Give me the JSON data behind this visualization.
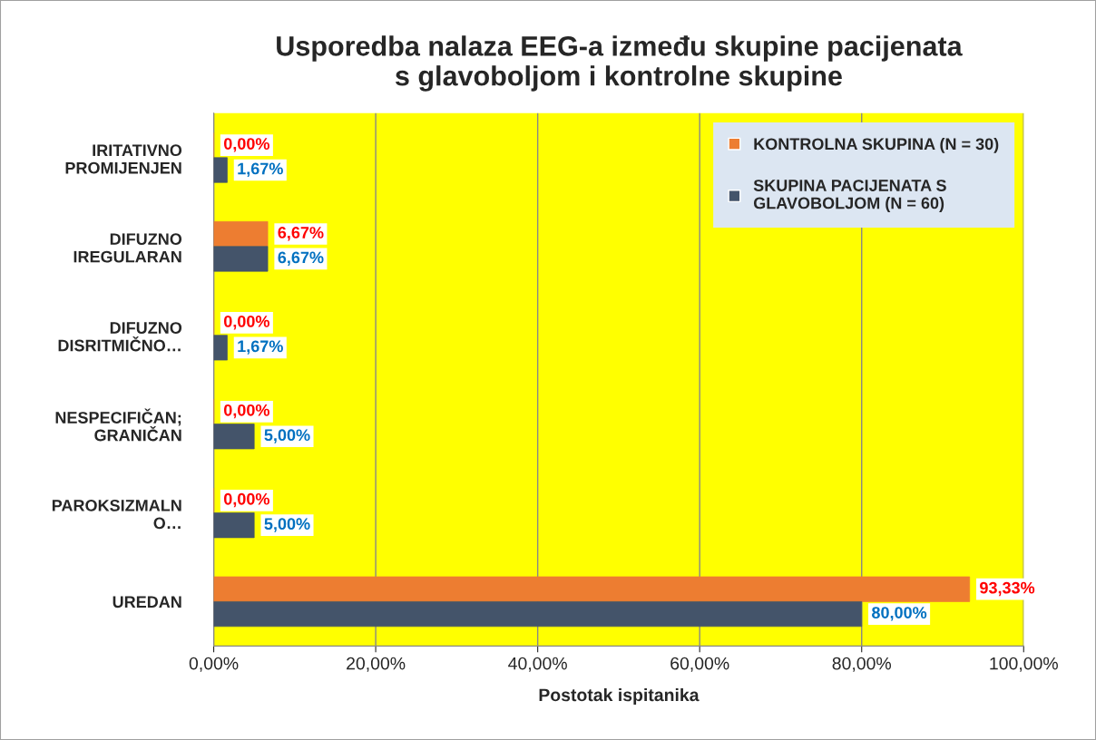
{
  "chart_data": {
    "type": "bar",
    "orientation": "horizontal",
    "title": "Usporedba nalaza EEG-a između skupine pacijenata\ns glavoboljom i kontrolne skupine",
    "xlabel": "Postotak ispitanika",
    "categories": [
      "IRITATIVNO\nPROMIJENJEN",
      "DIFUZNO\nIREGULARAN",
      "DIFUZNO\nDISRITMIČNO…",
      "NESPECIFIČAN;\nGRANIČAN",
      "PAROKSIZMALN\nO…",
      "UREDAN"
    ],
    "series": [
      {
        "name": "KONTROLNA SKUPINA (N = 30)",
        "color": "#ed7d31",
        "values": [
          0,
          6.67,
          0,
          0,
          0,
          93.33
        ],
        "value_labels": [
          "0,00%",
          "6,67%",
          "0,00%",
          "0,00%",
          "0,00%",
          "93,33%"
        ]
      },
      {
        "name": "SKUPINA PACIJENATA S\nGLAVOBOLJOM (N = 60)",
        "color": "#44546a",
        "values": [
          1.67,
          6.67,
          1.67,
          5.0,
          5.0,
          80.0
        ],
        "value_labels": [
          "1,67%",
          "6,67%",
          "1,67%",
          "5,00%",
          "5,00%",
          "80,00%"
        ]
      }
    ],
    "xlim": [
      0,
      100
    ],
    "xticks": [
      {
        "value": 0,
        "label": "0,00%"
      },
      {
        "value": 20,
        "label": "20,00%"
      },
      {
        "value": 40,
        "label": "40,00%"
      },
      {
        "value": 60,
        "label": "60,00%"
      },
      {
        "value": 80,
        "label": "80,00%"
      },
      {
        "value": 100,
        "label": "100,00%"
      }
    ],
    "grid": "x",
    "legend": "top right"
  }
}
